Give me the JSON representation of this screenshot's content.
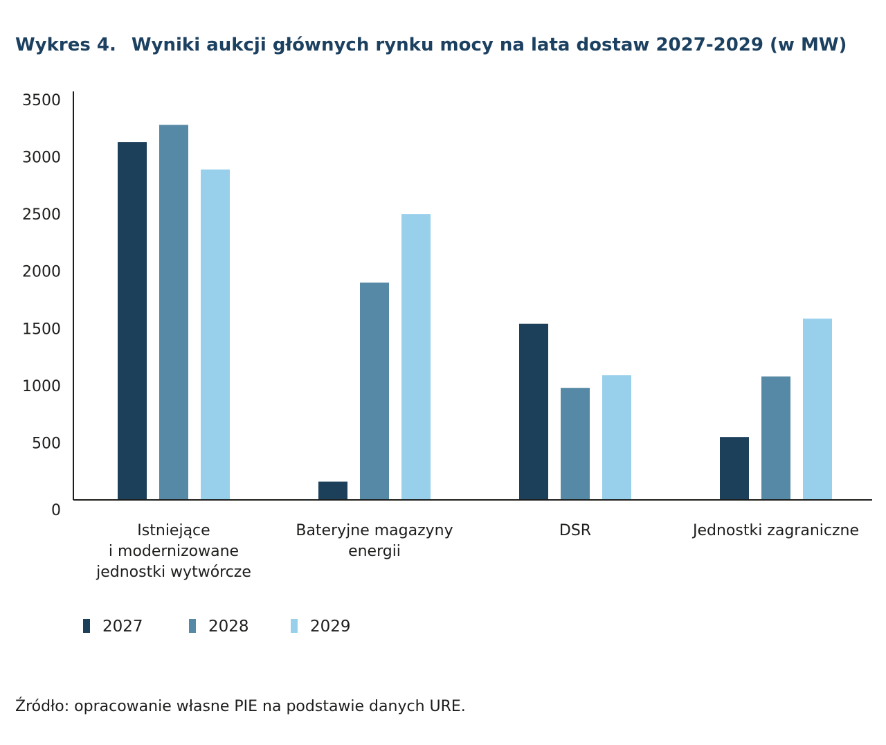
{
  "title": {
    "label": "Wykres 4.",
    "text": "Wyniki aukcji głównych rynku mocy na lata dostaw 2027-2029 (w MW)"
  },
  "source": "Źródło: opracowanie własne PIE na podstawie danych URE.",
  "colors": {
    "2027": "#1c3f5a",
    "2028": "#5589a5",
    "2029": "#98d0ec",
    "axis": "#1d1d1b"
  },
  "chart_data": {
    "type": "bar",
    "title": "Wyniki aukcji głównych rynku mocy na lata dostaw 2027-2029 (w MW)",
    "xlabel": "",
    "ylabel": "",
    "ylim": [
      0,
      3500
    ],
    "yticks": [
      0,
      500,
      1000,
      1500,
      2000,
      2500,
      3000,
      3500
    ],
    "grid": false,
    "legend_position": "bottom-left",
    "categories": [
      [
        "Istniejące",
        "i modernizowane",
        "jednostki wytwórcze"
      ],
      [
        "Bateryjne magazyny",
        "energii"
      ],
      [
        "DSR"
      ],
      [
        "Jednostki zagraniczne"
      ]
    ],
    "series": [
      {
        "name": "2027",
        "values": [
          3130,
          160,
          1540,
          550
        ]
      },
      {
        "name": "2028",
        "values": [
          3280,
          1900,
          980,
          1080
        ]
      },
      {
        "name": "2029",
        "values": [
          2890,
          2500,
          1090,
          1585
        ]
      }
    ]
  }
}
